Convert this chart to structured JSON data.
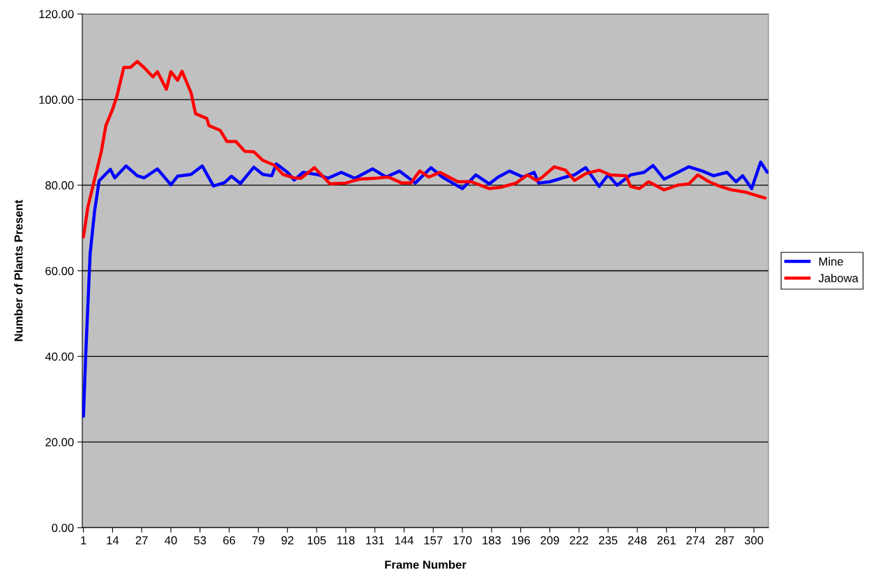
{
  "chart_data": {
    "type": "line",
    "xlabel": "Frame Number",
    "ylabel": "Number of Plants Present",
    "xlim": [
      0.5,
      306.5
    ],
    "xticks": [
      1,
      14,
      27,
      40,
      53,
      66,
      79,
      92,
      105,
      118,
      131,
      144,
      157,
      170,
      183,
      196,
      209,
      222,
      235,
      248,
      261,
      274,
      287,
      300
    ],
    "ylim": [
      0,
      120
    ],
    "yticks": [
      {
        "value": 0,
        "label": "0.00"
      },
      {
        "value": 20,
        "label": "20.00"
      },
      {
        "value": 40,
        "label": "40.00"
      },
      {
        "value": 60,
        "label": "60.00"
      },
      {
        "value": 80,
        "label": "80.00"
      },
      {
        "value": 100,
        "label": "100.00"
      },
      {
        "value": 120,
        "label": "120.00"
      }
    ],
    "grid": "y",
    "legend": "right",
    "marker": "none",
    "line_style": "solid",
    "series": [
      {
        "name": "Mine",
        "color": "#0000ff",
        "x": [
          1,
          2,
          4,
          6,
          8,
          13,
          15,
          20,
          25,
          28,
          34,
          40,
          43,
          49,
          54,
          59,
          64,
          67,
          71,
          77,
          81,
          85,
          87,
          92,
          95,
          99,
          106,
          110,
          116,
          122,
          130,
          136,
          142,
          149,
          156,
          161,
          170,
          176,
          182,
          186,
          191,
          197,
          202,
          204,
          209,
          216,
          220,
          225,
          231,
          235,
          239,
          245,
          251,
          255,
          260,
          265,
          271,
          277,
          282,
          288,
          292,
          295,
          299,
          303,
          306
        ],
        "values": [
          26,
          40,
          64,
          74,
          81,
          83.7,
          81.7,
          84.5,
          82.2,
          81.7,
          83.8,
          80.1,
          82.1,
          82.5,
          84.5,
          79.8,
          80.6,
          82.1,
          80.4,
          84.2,
          82.5,
          82.2,
          85,
          83,
          81.2,
          83,
          82.4,
          81.6,
          83,
          81.6,
          83.8,
          81.9,
          83.3,
          80.5,
          84.1,
          81.9,
          79.2,
          82.4,
          80.3,
          81.9,
          83.3,
          81.9,
          83,
          80.5,
          80.8,
          81.9,
          82.4,
          84.1,
          79.7,
          82.4,
          80,
          82.4,
          83,
          84.6,
          81.4,
          82.7,
          84.3,
          83.3,
          82.2,
          83,
          80.8,
          82.2,
          79.2,
          85.4,
          83
        ]
      },
      {
        "name": "Jabowa",
        "color": "#ff0000",
        "x": [
          1,
          3,
          6,
          9,
          11,
          14,
          16,
          19,
          22,
          25,
          28,
          32,
          34,
          38,
          40,
          43,
          45,
          49,
          51,
          56,
          57,
          62,
          65,
          69,
          73,
          77,
          81,
          86,
          90,
          95,
          98,
          104,
          111,
          118,
          124,
          131,
          137,
          143,
          147,
          151,
          155,
          160,
          168,
          174,
          182,
          187,
          194,
          199,
          203,
          205,
          211,
          216,
          220,
          225,
          231,
          236,
          243,
          245,
          249,
          253,
          260,
          266,
          271,
          275,
          280,
          285,
          290,
          296,
          301,
          305
        ],
        "values": [
          67.9,
          74.9,
          81.4,
          87.9,
          93.9,
          97.7,
          100.9,
          107.5,
          107.5,
          108.9,
          107.5,
          105.3,
          106.5,
          102.4,
          106.5,
          104.5,
          106.6,
          101.6,
          96.7,
          95.6,
          93.9,
          92.8,
          90.2,
          90.2,
          87.9,
          87.8,
          85.8,
          84.7,
          82.5,
          81.7,
          81.6,
          84.1,
          80.3,
          80.5,
          81.4,
          81.6,
          81.9,
          80.5,
          80.5,
          83.3,
          81.9,
          83,
          80.8,
          80.8,
          79.2,
          79.5,
          80.5,
          82.4,
          81.1,
          81.6,
          84.3,
          83.5,
          81.1,
          82.7,
          83.5,
          82.4,
          82.2,
          79.7,
          79.2,
          80.8,
          78.9,
          80,
          80.3,
          82.4,
          80.8,
          79.7,
          78.9,
          78.4,
          77.6,
          77
        ]
      }
    ]
  }
}
